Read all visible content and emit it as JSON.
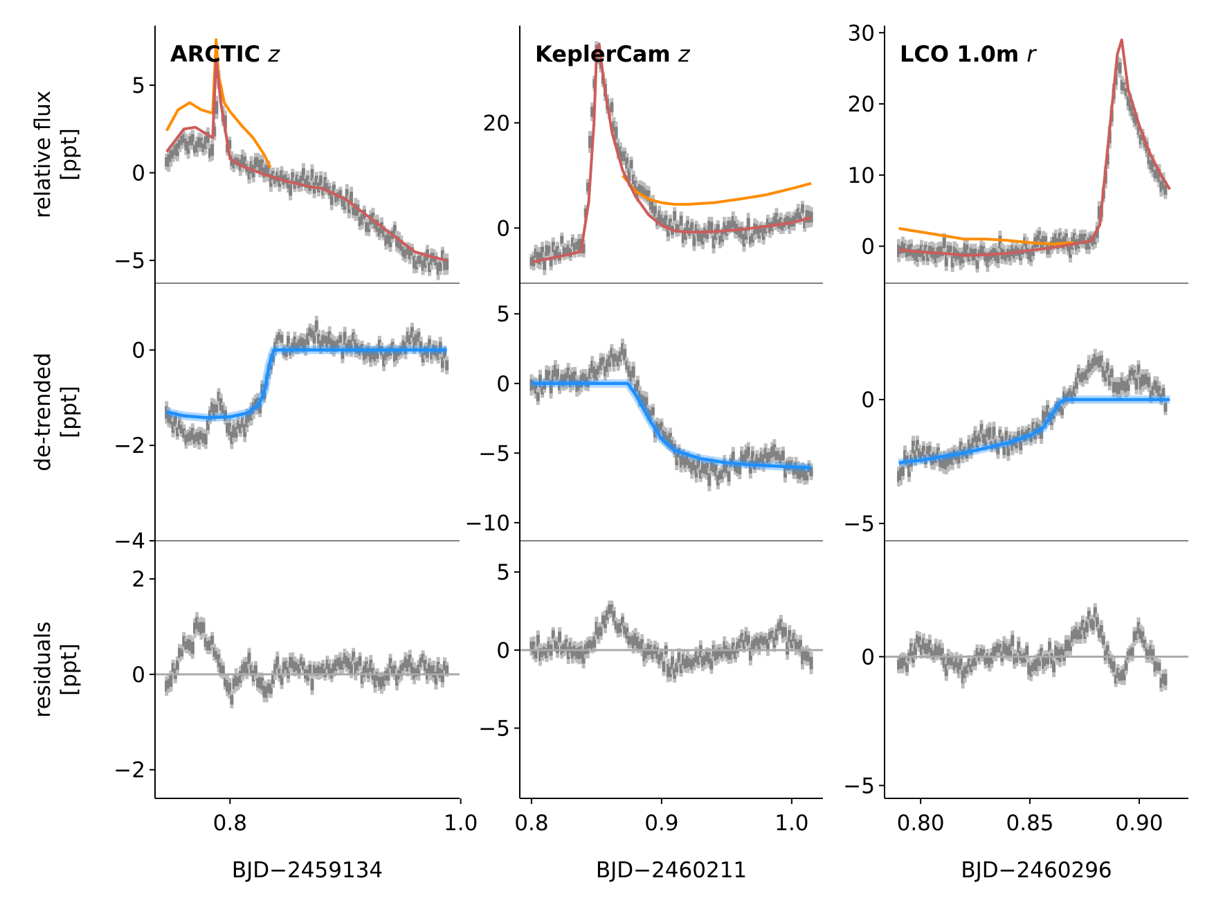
{
  "figure": {
    "ylabels": [
      "relative flux\n[ppt]",
      "de-trended\n[ppt]",
      "residuals\n[ppt]"
    ],
    "colors": {
      "data": "#808080",
      "raw_model": "#ff8c00",
      "trend_model": "#cd5c5c",
      "transit_model": "#1e90ff",
      "zero_line": "#a9a9a9"
    },
    "legend": "none",
    "grid": false
  },
  "chart_data": [
    {
      "type": "line",
      "instrument": "ARCTIC",
      "filter": "z",
      "xlabel": "BJD−2459134",
      "xlim": [
        0.735,
        0.999
      ],
      "xticks": [
        0.8,
        1.0
      ],
      "xtick_labels": [
        "0.8",
        "1.0"
      ],
      "rows": [
        {
          "ylim": [
            -6.3,
            8.4
          ],
          "yticks": [
            -5,
            0,
            5
          ],
          "ytick_labels": [
            "−5",
            "0",
            "5"
          ]
        },
        {
          "ylim": [
            -4.0,
            1.4
          ],
          "yticks": [
            -4,
            -2,
            0
          ],
          "ytick_labels": [
            "−4",
            "−2",
            "0"
          ]
        },
        {
          "ylim": [
            -2.6,
            2.8
          ],
          "yticks": [
            -2,
            0,
            2
          ],
          "ytick_labels": [
            "−2",
            "0",
            "2"
          ]
        }
      ],
      "series": [
        {
          "panel": "flux",
          "role": "data",
          "x": [
            0.745,
            0.76,
            0.775,
            0.785,
            0.79,
            0.8,
            0.815,
            0.83,
            0.85,
            0.87,
            0.88,
            0.9,
            0.92,
            0.94,
            0.96,
            0.975,
            0.988
          ],
          "y": [
            0.8,
            1.9,
            1.6,
            1.4,
            5.2,
            1.1,
            0.5,
            0.0,
            -0.4,
            -0.5,
            -0.8,
            -1.5,
            -2.6,
            -3.7,
            -4.8,
            -5.1,
            -5.3
          ]
        },
        {
          "panel": "flux",
          "role": "raw_model",
          "x": [
            0.745,
            0.755,
            0.765,
            0.775,
            0.785,
            0.788,
            0.79,
            0.795,
            0.8,
            0.81,
            0.82,
            0.83,
            0.835
          ],
          "y": [
            2.4,
            3.6,
            4.0,
            3.6,
            3.4,
            7.6,
            5.6,
            4.0,
            3.5,
            2.7,
            2.0,
            1.0,
            0.3
          ]
        },
        {
          "panel": "flux",
          "role": "trend_model",
          "x": [
            0.745,
            0.76,
            0.77,
            0.78,
            0.785,
            0.788,
            0.792,
            0.8,
            0.81,
            0.83,
            0.85,
            0.87,
            0.88,
            0.9,
            0.92,
            0.94,
            0.96,
            0.975,
            0.988
          ],
          "y": [
            1.2,
            2.5,
            2.6,
            2.2,
            2.0,
            6.5,
            4.0,
            0.8,
            0.4,
            -0.1,
            -0.5,
            -0.8,
            -0.9,
            -1.5,
            -2.5,
            -3.5,
            -4.5,
            -4.8,
            -5.0
          ]
        },
        {
          "panel": "detrended",
          "role": "data",
          "x": [
            0.745,
            0.76,
            0.775,
            0.79,
            0.8,
            0.815,
            0.83,
            0.84,
            0.85,
            0.87,
            0.9,
            0.93,
            0.96,
            0.988
          ],
          "y": [
            -1.4,
            -1.8,
            -1.9,
            -0.9,
            -1.7,
            -1.5,
            -0.8,
            0.2,
            0.0,
            0.3,
            0.1,
            -0.1,
            0.2,
            -0.2
          ]
        },
        {
          "panel": "detrended",
          "role": "transit_model",
          "x": [
            0.745,
            0.76,
            0.78,
            0.8,
            0.815,
            0.825,
            0.83,
            0.834,
            0.838,
            0.86,
            0.9,
            0.96,
            0.988
          ],
          "y": [
            -1.3,
            -1.38,
            -1.42,
            -1.4,
            -1.32,
            -1.15,
            -0.85,
            -0.3,
            0.0,
            0.0,
            0.0,
            0.0,
            0.0
          ]
        },
        {
          "panel": "residuals",
          "role": "data",
          "x": [
            0.745,
            0.76,
            0.775,
            0.79,
            0.8,
            0.815,
            0.83,
            0.85,
            0.87,
            0.9,
            0.93,
            0.96,
            0.988
          ],
          "y": [
            -0.3,
            0.6,
            1.0,
            0.3,
            -0.4,
            0.2,
            -0.3,
            0.2,
            0.0,
            0.3,
            -0.1,
            0.2,
            0.0
          ]
        },
        {
          "panel": "residuals",
          "role": "zero_line",
          "x": [
            0.735,
            0.999
          ],
          "y": [
            0,
            0
          ]
        }
      ]
    },
    {
      "type": "line",
      "instrument": "KeplerCam",
      "filter": "z",
      "xlabel": "BJD−2460211",
      "xlim": [
        0.791,
        1.024
      ],
      "xticks": [
        0.8,
        0.9,
        1.0
      ],
      "xtick_labels": [
        "0.8",
        "0.9",
        "1.0"
      ],
      "rows": [
        {
          "ylim": [
            -10.5,
            38.5
          ],
          "yticks": [
            0,
            20
          ],
          "ytick_labels": [
            "0",
            "20"
          ]
        },
        {
          "ylim": [
            -11.3,
            7.2
          ],
          "yticks": [
            -10,
            -5,
            0,
            5
          ],
          "ytick_labels": [
            "−10",
            "−5",
            "0",
            "5"
          ]
        },
        {
          "ylim": [
            -9.5,
            7.0
          ],
          "yticks": [
            -5,
            0,
            5
          ],
          "ytick_labels": [
            "−5",
            "0",
            "5"
          ]
        }
      ],
      "series": [
        {
          "panel": "flux",
          "role": "data",
          "x": [
            0.8,
            0.82,
            0.84,
            0.845,
            0.85,
            0.86,
            0.87,
            0.88,
            0.9,
            0.92,
            0.94,
            0.96,
            0.98,
            1.0,
            1.015
          ],
          "y": [
            -6.0,
            -4.5,
            -3.0,
            15.0,
            34.0,
            22.0,
            14.0,
            8.0,
            1.5,
            -0.5,
            -1.0,
            -0.5,
            0.0,
            1.0,
            2.0
          ]
        },
        {
          "panel": "flux",
          "role": "raw_model",
          "x": [
            0.87,
            0.88,
            0.89,
            0.9,
            0.91,
            0.92,
            0.94,
            0.96,
            0.98,
            1.0,
            1.015
          ],
          "y": [
            10.0,
            7.0,
            5.5,
            4.8,
            4.5,
            4.5,
            4.8,
            5.5,
            6.3,
            7.5,
            8.5
          ]
        },
        {
          "panel": "flux",
          "role": "trend_model",
          "x": [
            0.8,
            0.82,
            0.838,
            0.844,
            0.848,
            0.85,
            0.852,
            0.856,
            0.862,
            0.87,
            0.88,
            0.89,
            0.9,
            0.91,
            0.92,
            0.94,
            0.96,
            0.98,
            1.0,
            1.015
          ],
          "y": [
            -6.5,
            -5.5,
            -4.5,
            5.0,
            20.0,
            33.0,
            35.0,
            27.0,
            18.0,
            11.0,
            6.0,
            2.5,
            0.5,
            -0.5,
            -0.8,
            -0.7,
            -0.3,
            0.3,
            1.0,
            2.0
          ]
        },
        {
          "panel": "detrended",
          "role": "data",
          "x": [
            0.8,
            0.82,
            0.84,
            0.86,
            0.87,
            0.88,
            0.9,
            0.92,
            0.94,
            0.96,
            0.98,
            1.0,
            1.015
          ],
          "y": [
            -0.5,
            0.5,
            0.0,
            1.5,
            2.0,
            0.0,
            -3.5,
            -6.0,
            -6.5,
            -5.8,
            -5.2,
            -5.8,
            -6.5
          ]
        },
        {
          "panel": "detrended",
          "role": "transit_model",
          "x": [
            0.8,
            0.82,
            0.84,
            0.86,
            0.874,
            0.88,
            0.89,
            0.9,
            0.91,
            0.93,
            0.95,
            0.97,
            0.99,
            1.015
          ],
          "y": [
            0.0,
            0.0,
            0.0,
            0.0,
            0.0,
            -0.8,
            -2.5,
            -4.0,
            -4.8,
            -5.4,
            -5.7,
            -5.85,
            -5.95,
            -6.05
          ]
        },
        {
          "panel": "residuals",
          "role": "data",
          "x": [
            0.8,
            0.82,
            0.84,
            0.86,
            0.87,
            0.89,
            0.91,
            0.93,
            0.95,
            0.97,
            0.99,
            1.0,
            1.015
          ],
          "y": [
            0.0,
            0.5,
            -0.5,
            2.5,
            1.5,
            0.0,
            -1.0,
            -0.5,
            0.0,
            0.5,
            1.0,
            0.5,
            -0.5
          ]
        },
        {
          "panel": "residuals",
          "role": "zero_line",
          "x": [
            0.791,
            1.024
          ],
          "y": [
            0,
            0
          ]
        }
      ]
    },
    {
      "type": "line",
      "instrument": "LCO 1.0m",
      "filter": "r",
      "xlabel": "BJD−2460296",
      "xlim": [
        0.7835,
        0.9225
      ],
      "xticks": [
        0.8,
        0.85,
        0.9
      ],
      "xtick_labels": [
        "0.80",
        "0.85",
        "0.90"
      ],
      "rows": [
        {
          "ylim": [
            -5.2,
            31.0
          ],
          "yticks": [
            0,
            10,
            20,
            30
          ],
          "ytick_labels": [
            "0",
            "10",
            "20",
            "30"
          ]
        },
        {
          "ylim": [
            -5.7,
            4.7
          ],
          "yticks": [
            -5,
            0
          ],
          "ytick_labels": [
            "−5",
            "0"
          ]
        },
        {
          "ylim": [
            -5.5,
            4.5
          ],
          "yticks": [
            -5,
            0
          ],
          "ytick_labels": [
            "−5",
            "0"
          ]
        }
      ],
      "series": [
        {
          "panel": "flux",
          "role": "data",
          "x": [
            0.79,
            0.8,
            0.81,
            0.82,
            0.83,
            0.84,
            0.85,
            0.86,
            0.87,
            0.88,
            0.885,
            0.89,
            0.893,
            0.898,
            0.905,
            0.912
          ],
          "y": [
            -0.5,
            -1.0,
            -1.0,
            -1.5,
            -1.2,
            -1.0,
            -0.5,
            0.5,
            1.0,
            1.0,
            10.0,
            26.0,
            22.0,
            18.0,
            12.0,
            8.0
          ]
        },
        {
          "panel": "flux",
          "role": "raw_model",
          "x": [
            0.79,
            0.8,
            0.81,
            0.82,
            0.83,
            0.84,
            0.85,
            0.86,
            0.87
          ],
          "y": [
            2.5,
            2.0,
            1.5,
            1.0,
            1.0,
            0.8,
            0.5,
            0.3,
            0.5
          ]
        },
        {
          "panel": "flux",
          "role": "trend_model",
          "x": [
            0.79,
            0.8,
            0.81,
            0.82,
            0.83,
            0.84,
            0.85,
            0.86,
            0.87,
            0.878,
            0.882,
            0.886,
            0.89,
            0.892,
            0.895,
            0.9,
            0.905,
            0.91,
            0.914
          ],
          "y": [
            -0.5,
            -0.8,
            -1.0,
            -1.3,
            -1.2,
            -1.0,
            -0.6,
            -0.2,
            0.3,
            0.8,
            3.0,
            15.0,
            27.0,
            29.0,
            22.0,
            17.0,
            13.0,
            10.0,
            8.0
          ]
        },
        {
          "panel": "detrended",
          "role": "data",
          "x": [
            0.79,
            0.8,
            0.81,
            0.82,
            0.83,
            0.84,
            0.85,
            0.86,
            0.87,
            0.88,
            0.89,
            0.9,
            0.912
          ],
          "y": [
            -3.0,
            -2.0,
            -2.5,
            -2.0,
            -1.5,
            -1.8,
            -1.5,
            -0.5,
            0.5,
            1.5,
            0.5,
            1.0,
            0.0
          ]
        },
        {
          "panel": "detrended",
          "role": "transit_model",
          "x": [
            0.79,
            0.8,
            0.81,
            0.82,
            0.83,
            0.84,
            0.85,
            0.856,
            0.86,
            0.864,
            0.866,
            0.88,
            0.9,
            0.914
          ],
          "y": [
            -2.55,
            -2.45,
            -2.3,
            -2.15,
            -1.95,
            -1.75,
            -1.45,
            -1.15,
            -0.6,
            -0.1,
            0.0,
            0.0,
            0.0,
            0.0
          ]
        },
        {
          "panel": "residuals",
          "role": "data",
          "x": [
            0.79,
            0.8,
            0.81,
            0.82,
            0.83,
            0.84,
            0.85,
            0.86,
            0.87,
            0.88,
            0.89,
            0.9,
            0.912
          ],
          "y": [
            -0.5,
            0.5,
            0.0,
            -0.5,
            0.0,
            0.3,
            -0.3,
            0.0,
            0.5,
            1.5,
            -1.0,
            1.0,
            -1.0
          ]
        },
        {
          "panel": "residuals",
          "role": "zero_line",
          "x": [
            0.7835,
            0.9225
          ],
          "y": [
            0,
            0
          ]
        }
      ]
    }
  ]
}
